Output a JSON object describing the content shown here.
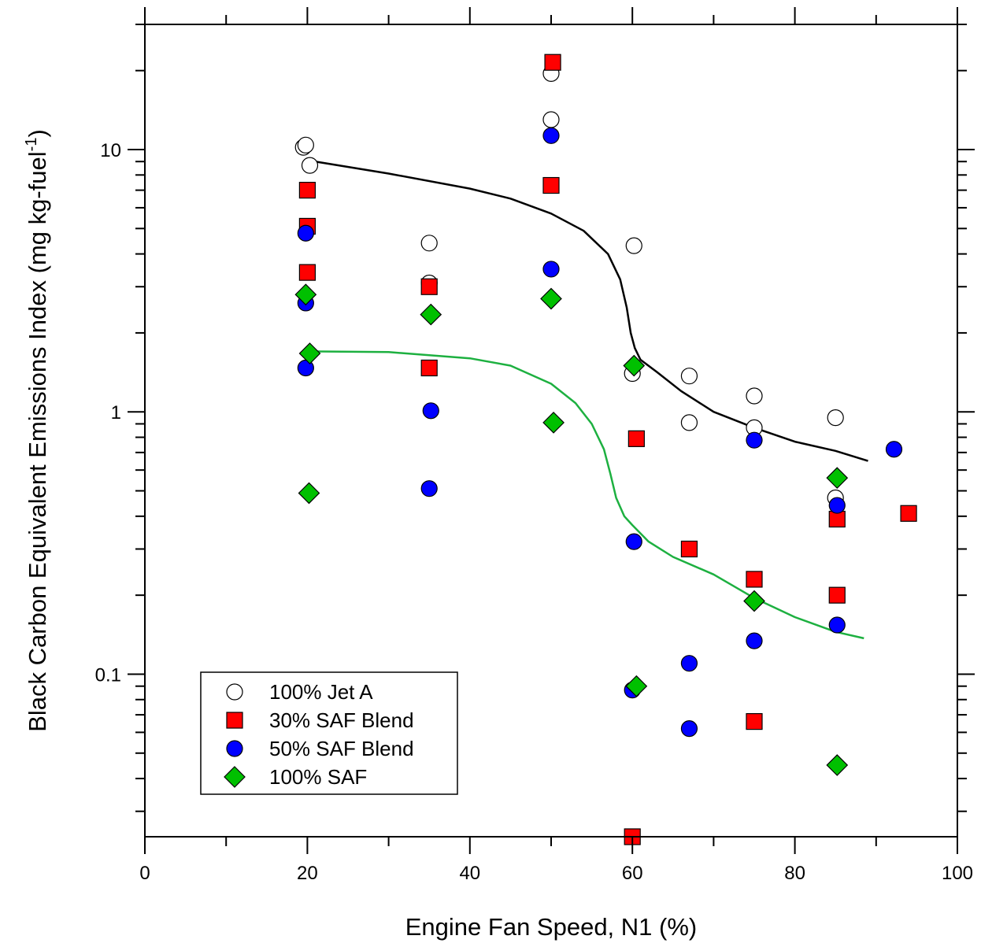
{
  "chart_data": {
    "type": "scatter",
    "xlabel": "Engine Fan Speed, N1 (%)",
    "ylabel": "Black Carbon Equivalent Emissions Index (mg kg-fuel",
    "ylabel_superscript": "-1",
    "ylabel_suffix": ")",
    "x_ticks": [
      "0",
      "20",
      "40",
      "60",
      "80",
      "100"
    ],
    "y_ticks": [
      "0.1",
      "1",
      "10"
    ],
    "xlim": [
      0,
      100
    ],
    "ylim": [
      0.024,
      30
    ],
    "y_scale": "log",
    "grid": false,
    "legend_position": "bottom-left",
    "series": [
      {
        "name": "100% Jet A",
        "marker": "circle-open",
        "color": "#ffffff",
        "points": [
          [
            19.5,
            10.2
          ],
          [
            19.8,
            10.4
          ],
          [
            20.3,
            8.7
          ],
          [
            35,
            4.4
          ],
          [
            35,
            3.1
          ],
          [
            50,
            19.5
          ],
          [
            50,
            13
          ],
          [
            60.2,
            4.3
          ],
          [
            60,
            1.4
          ],
          [
            67,
            1.37
          ],
          [
            67,
            0.91
          ],
          [
            75,
            1.15
          ],
          [
            75,
            0.87
          ],
          [
            85,
            0.95
          ],
          [
            85,
            0.47
          ]
        ]
      },
      {
        "name": "30% SAF Blend",
        "marker": "square",
        "color": "#ff0000",
        "points": [
          [
            20,
            7
          ],
          [
            20,
            5.1
          ],
          [
            20,
            3.4
          ],
          [
            35,
            3
          ],
          [
            35,
            1.47
          ],
          [
            50.2,
            21.5
          ],
          [
            50,
            7.3
          ],
          [
            60.5,
            0.79
          ],
          [
            60,
            0.024
          ],
          [
            67,
            0.3
          ],
          [
            75,
            0.23
          ],
          [
            75,
            0.066
          ],
          [
            85.2,
            0.39
          ],
          [
            85.2,
            0.2
          ],
          [
            94,
            0.41
          ]
        ]
      },
      {
        "name": "50% SAF Blend",
        "marker": "circle",
        "color": "#0000ff",
        "points": [
          [
            19.8,
            4.8
          ],
          [
            19.8,
            2.6
          ],
          [
            19.8,
            1.47
          ],
          [
            35.2,
            1.01
          ],
          [
            35,
            0.51
          ],
          [
            50,
            11.3
          ],
          [
            50,
            3.5
          ],
          [
            60.2,
            0.32
          ],
          [
            60,
            0.087
          ],
          [
            67,
            0.11
          ],
          [
            67,
            0.062
          ],
          [
            75,
            0.78
          ],
          [
            75,
            0.134
          ],
          [
            85.2,
            0.44
          ],
          [
            85.2,
            0.154
          ],
          [
            92.2,
            0.72
          ]
        ]
      },
      {
        "name": "100% SAF",
        "marker": "diamond",
        "color": "#00c000",
        "points": [
          [
            19.8,
            2.8
          ],
          [
            20.3,
            1.67
          ],
          [
            20.2,
            0.49
          ],
          [
            35.2,
            2.35
          ],
          [
            50,
            2.7
          ],
          [
            50.3,
            0.91
          ],
          [
            60.2,
            1.5
          ],
          [
            60.5,
            0.09
          ],
          [
            75,
            0.19
          ],
          [
            85.2,
            0.56
          ],
          [
            85.2,
            0.045
          ]
        ]
      }
    ],
    "fit_lines": [
      {
        "color": "#000000",
        "points": [
          [
            20,
            9.1
          ],
          [
            30,
            8.1
          ],
          [
            40,
            7.1
          ],
          [
            45,
            6.5
          ],
          [
            50,
            5.7
          ],
          [
            54,
            4.9
          ],
          [
            57,
            4.0
          ],
          [
            58.5,
            3.2
          ],
          [
            59.3,
            2.5
          ],
          [
            59.8,
            2.0
          ],
          [
            60.3,
            1.75
          ],
          [
            61,
            1.58
          ],
          [
            63,
            1.42
          ],
          [
            66,
            1.2
          ],
          [
            70,
            1.0
          ],
          [
            75,
            0.87
          ],
          [
            80,
            0.77
          ],
          [
            85,
            0.71
          ],
          [
            89,
            0.65
          ]
        ]
      },
      {
        "color": "#1db040",
        "points": [
          [
            20,
            1.7
          ],
          [
            30,
            1.69
          ],
          [
            40,
            1.6
          ],
          [
            45,
            1.5
          ],
          [
            50,
            1.28
          ],
          [
            53,
            1.08
          ],
          [
            55,
            0.9
          ],
          [
            56.5,
            0.72
          ],
          [
            57.3,
            0.58
          ],
          [
            58,
            0.47
          ],
          [
            59,
            0.4
          ],
          [
            60,
            0.37
          ],
          [
            62,
            0.32
          ],
          [
            65,
            0.28
          ],
          [
            70,
            0.24
          ],
          [
            75,
            0.195
          ],
          [
            80,
            0.165
          ],
          [
            85,
            0.145
          ],
          [
            88.5,
            0.137
          ]
        ]
      }
    ]
  }
}
